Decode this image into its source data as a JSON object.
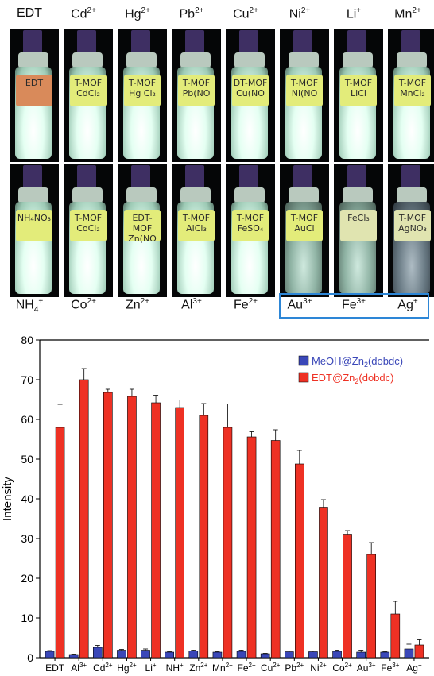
{
  "top_labels": [
    {
      "base": "EDT",
      "sup": ""
    },
    {
      "base": "Cd",
      "sup": "2+"
    },
    {
      "base": "Hg",
      "sup": "2+"
    },
    {
      "base": "Pb",
      "sup": "2+"
    },
    {
      "base": "Cu",
      "sup": "2+"
    },
    {
      "base": "Ni",
      "sup": "2+"
    },
    {
      "base": "Li",
      "sup": "+"
    },
    {
      "base": "Mn",
      "sup": "2+"
    }
  ],
  "bottom_labels": [
    {
      "base": "NH",
      "sub": "4",
      "sup": "+"
    },
    {
      "base": "Co",
      "sub": "",
      "sup": "2+"
    },
    {
      "base": "Zn",
      "sub": "",
      "sup": "2+"
    },
    {
      "base": "Al",
      "sub": "",
      "sup": "3+"
    },
    {
      "base": "Fe",
      "sub": "",
      "sup": "2+"
    },
    {
      "base": "Au",
      "sub": "",
      "sup": "3+"
    },
    {
      "base": "Fe",
      "sub": "",
      "sup": "3+"
    },
    {
      "base": "Ag",
      "sub": "",
      "sup": "+"
    }
  ],
  "vial_tags_top": [
    "EDT",
    "T-MOF\nCdCl₂",
    "T-MOF\nHg Cl₂",
    "T-MOF\nPb(NO",
    "DT-MOF\nCu(NO",
    "T-MOF\nNi(NO",
    "T-MOF\nLiCl",
    "T-MOF\nMnCl₂"
  ],
  "vial_tags_bottom": [
    "NH₄NO₃",
    "T-MOF\nCoCl₂",
    "EDT-MOF\nZn(NO",
    "T-MOF\nAlCl₃",
    "T-MOF\nFeSO₄",
    "T-MOF\nAuCl",
    "FeCl₃",
    "T-MOF\nAgNO₃"
  ],
  "colors": {
    "red": "#ee3124",
    "blue": "#3a47b8",
    "box": "#2d86d6"
  },
  "chart_data": {
    "type": "bar",
    "ylabel": "Intensity",
    "ylim": [
      0,
      80
    ],
    "yticks": [
      0,
      10,
      20,
      30,
      40,
      50,
      60,
      70,
      80
    ],
    "categories": [
      {
        "base": "EDT",
        "sup": ""
      },
      {
        "base": "Al",
        "sup": "3+"
      },
      {
        "base": "Cd",
        "sup": "2+"
      },
      {
        "base": "Hg",
        "sup": "2+"
      },
      {
        "base": "Li",
        "sup": "+"
      },
      {
        "base": "NH",
        "sup": "+"
      },
      {
        "base": "Zn",
        "sup": "2+"
      },
      {
        "base": "Mn",
        "sup": "2+"
      },
      {
        "base": "Fe",
        "sup": "2+"
      },
      {
        "base": "Cu",
        "sup": "2+"
      },
      {
        "base": "Pb",
        "sup": "2+"
      },
      {
        "base": "Ni",
        "sup": "2+"
      },
      {
        "base": "Co",
        "sup": "2+"
      },
      {
        "base": "Au",
        "sup": "3+"
      },
      {
        "base": "Fe",
        "sup": "3+"
      },
      {
        "base": "Ag",
        "sup": "+"
      }
    ],
    "series": [
      {
        "name": "MeOH@Zn2(dobdc)",
        "name_base": "MeOH@Zn",
        "name_sub": "2",
        "name_tail": "(dobdc)",
        "color": "#3a47b8",
        "values": [
          1.6,
          0.8,
          2.6,
          1.9,
          1.9,
          1.4,
          1.7,
          1.4,
          1.6,
          1.0,
          1.5,
          1.5,
          1.6,
          1.4,
          1.4,
          2.2
        ],
        "errors": [
          0.2,
          0.1,
          0.5,
          0.2,
          0.3,
          0.1,
          0.2,
          0.1,
          0.3,
          0.1,
          0.2,
          0.2,
          0.3,
          0.5,
          0.1,
          1.2
        ]
      },
      {
        "name": "EDT@Zn2(dobdc)",
        "name_base": "EDT@Zn",
        "name_sub": "2",
        "name_tail": "(dobdc)",
        "color": "#ee3124",
        "values": [
          58.0,
          70.0,
          66.8,
          65.8,
          64.2,
          63.0,
          61.0,
          58.0,
          55.6,
          54.7,
          48.8,
          37.9,
          31.1,
          26.0,
          11.0,
          3.2
        ],
        "errors": [
          5.8,
          2.8,
          0.8,
          1.8,
          1.9,
          1.9,
          3.0,
          5.9,
          1.3,
          2.7,
          3.4,
          1.9,
          0.9,
          3.0,
          3.2,
          1.3
        ]
      }
    ]
  }
}
